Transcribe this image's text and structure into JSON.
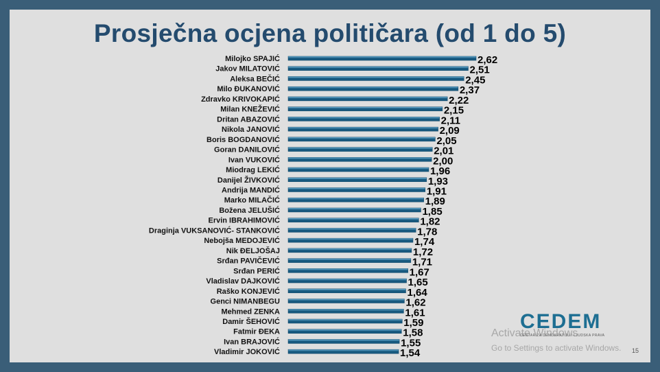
{
  "slide": {
    "title": "Prosječna ocjena političara (od 1 do 5)",
    "page_number": "15",
    "logo": {
      "text": "CEDEM",
      "subtitle": "CENTAR ZA DEMOKRATIJU I LJUDSKA PRAVA"
    },
    "watermark": {
      "title": "Activate Windows",
      "subtitle": "Go to Settings to activate Windows."
    }
  },
  "colors": {
    "background": "#3a5e78",
    "slide": "#dfdfdf",
    "title": "#244b6e",
    "bar_light": "#7ec2e6",
    "bar_dark": "#17597f",
    "label": "#111111",
    "value": "#000000"
  },
  "chart_data": {
    "type": "bar",
    "orientation": "horizontal",
    "title": "Prosječna ocjena političara (od 1 do 5)",
    "xlabel": "",
    "ylabel": "",
    "xlim": [
      0,
      2.62
    ],
    "grid": false,
    "legend": "none",
    "categories": [
      "Miloјko SPAJIĆ",
      "Jakov MILATOVIĆ",
      "Aleksa BEČIĆ",
      "Milo ĐUKANOVIĆ",
      "Zdravko KRIVOKAPIĆ",
      "Milan KNEŽEVIĆ",
      "Dritan ABAZOVIĆ",
      "Nikola JANOVIĆ",
      "Boris BOGDANOVIĆ",
      "Goran DANILOVIĆ",
      "Ivan VUKOVIĆ",
      "Miodrag LEKIĆ",
      "Danijel ŽIVKOVIĆ",
      "Andrija MANDIĆ",
      "Marko MILAČIĆ",
      "Božena JELUŠIĆ",
      "Ervin IBRAHIMOVIĆ",
      "Draginja VUKSANOVIĆ- STANKOVIĆ",
      "Nebojša MEDOJEVIĆ",
      "Nik ĐELJOŠAJ",
      "Srđan PAVIČEVIĆ",
      "Srđan PERIĆ",
      "Vladislav DAJKOVIĆ",
      "Raško KONJEVIĆ",
      "Genci NIMANBEGU",
      "Mehmed ZENKA",
      "Damir ŠEHOVIĆ",
      "Fatmir ĐEKA",
      "Ivan BRAJOVIĆ",
      "Vladimir JOKOVIĆ"
    ],
    "values": [
      2.62,
      2.51,
      2.45,
      2.37,
      2.22,
      2.15,
      2.11,
      2.09,
      2.05,
      2.01,
      2.0,
      1.96,
      1.93,
      1.91,
      1.89,
      1.85,
      1.82,
      1.78,
      1.74,
      1.72,
      1.71,
      1.67,
      1.65,
      1.64,
      1.62,
      1.61,
      1.59,
      1.58,
      1.55,
      1.54
    ],
    "value_labels": [
      "2,62",
      "2,51",
      "2,45",
      "2,37",
      "2,22",
      "2,15",
      "2,11",
      "2,09",
      "2,05",
      "2,01",
      "2,00",
      "1,96",
      "1,93",
      "1,91",
      "1,89",
      "1,85",
      "1,82",
      "1,78",
      "1,74",
      "1,72",
      "1,71",
      "1,67",
      "1,65",
      "1,64",
      "1,62",
      "1,61",
      "1,59",
      "1,58",
      "1,55",
      "1,54"
    ]
  }
}
